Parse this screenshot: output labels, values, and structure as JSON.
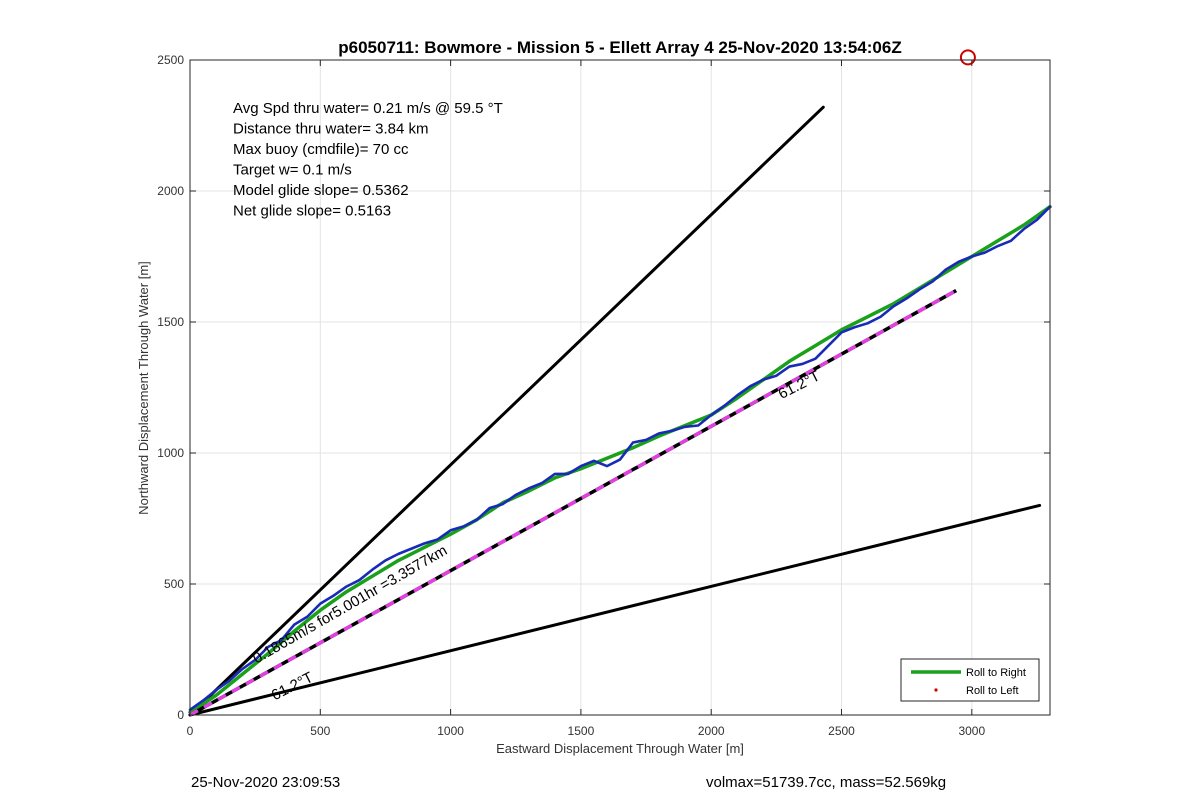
{
  "chart_data": {
    "type": "line",
    "title": "p6050711: Bowmore - Mission 5 - Ellett Array 4 25-Nov-2020 13:54:06Z",
    "xlabel": "Eastward Displacement Through Water [m]",
    "ylabel": "Northward Displacement Through Water [m]",
    "xlim": [
      0,
      3300
    ],
    "ylim": [
      0,
      2500
    ],
    "xticks": [
      0,
      500,
      1000,
      1500,
      2000,
      2500,
      3000
    ],
    "yticks": [
      0,
      500,
      1000,
      1500,
      2000,
      2500
    ],
    "grid": true,
    "legend_position": "bottom-right",
    "stats": [
      "Avg Spd thru water=  0.21 m/s @  59.5 °T",
      "Distance thru water=  3.84 km",
      "Max buoy (cmdfile)= 70 cc",
      "Target w= 0.1 m/s",
      "Model glide slope= 0.5362",
      "Net glide slope= 0.5163"
    ],
    "annotations": [
      {
        "text": "0.1865m/s for5.001hr =3.3577km",
        "x": 255,
        "y": 195,
        "angle": 30
      },
      {
        "text": "61.2°T",
        "x": 325,
        "y": 55,
        "angle": 27
      },
      {
        "text": "61.2°T",
        "x": 2270,
        "y": 1205,
        "angle": 27
      }
    ],
    "series": [
      {
        "name": "Roll to Right",
        "color": "#1aa01a",
        "style": "solid",
        "x": [
          0,
          100,
          200,
          300,
          400,
          500,
          600,
          700,
          800,
          900,
          1000,
          1100,
          1200,
          1300,
          1400,
          1500,
          1600,
          1700,
          1800,
          1900,
          2000,
          2100,
          2200,
          2300,
          2400,
          2500,
          2600,
          2700,
          2800,
          2900,
          3000,
          3100,
          3200,
          3300
        ],
        "y": [
          10,
          75,
          155,
          235,
          320,
          400,
          470,
          530,
          590,
          640,
          690,
          745,
          810,
          855,
          905,
          940,
          980,
          1020,
          1065,
          1105,
          1145,
          1210,
          1280,
          1350,
          1410,
          1470,
          1520,
          1570,
          1630,
          1690,
          1750,
          1810,
          1870,
          1940
        ]
      },
      {
        "name": "Roll to Left",
        "color": "#d00000",
        "style": "dot",
        "x": [],
        "y": []
      },
      {
        "name": "",
        "color": "#1a2ab8",
        "style": "solid",
        "x": [
          0,
          50,
          100,
          150,
          200,
          250,
          300,
          350,
          400,
          450,
          500,
          550,
          600,
          650,
          700,
          750,
          800,
          850,
          900,
          950,
          1000,
          1050,
          1100,
          1150,
          1200,
          1250,
          1300,
          1350,
          1400,
          1450,
          1500,
          1550,
          1600,
          1650,
          1700,
          1750,
          1800,
          1850,
          1900,
          1950,
          2000,
          2050,
          2100,
          2150,
          2200,
          2250,
          2300,
          2350,
          2400,
          2450,
          2500,
          2550,
          2600,
          2650,
          2700,
          2750,
          2800,
          2850,
          2900,
          2950,
          3000,
          3050,
          3100,
          3150,
          3200,
          3250,
          3300
        ],
        "y": [
          20,
          55,
          95,
          130,
          175,
          210,
          260,
          285,
          345,
          375,
          425,
          455,
          490,
          515,
          555,
          590,
          615,
          635,
          655,
          670,
          705,
          720,
          745,
          790,
          805,
          840,
          865,
          885,
          920,
          920,
          950,
          970,
          950,
          975,
          1040,
          1050,
          1075,
          1085,
          1100,
          1105,
          1145,
          1180,
          1220,
          1255,
          1280,
          1295,
          1330,
          1340,
          1360,
          1410,
          1460,
          1480,
          1495,
          1520,
          1560,
          1590,
          1625,
          1655,
          1700,
          1730,
          1750,
          1765,
          1790,
          1810,
          1855,
          1890,
          1940
        ]
      },
      {
        "name": "",
        "color": "#000000",
        "style": "solid",
        "x": [
          0,
          2430
        ],
        "y": [
          0,
          2320
        ]
      },
      {
        "name": "",
        "color": "#000000",
        "style": "solid",
        "x": [
          0,
          3260
        ],
        "y": [
          0,
          800
        ]
      },
      {
        "name": "",
        "color": "#000000",
        "style": "dashed-magenta",
        "x": [
          0,
          2940
        ],
        "y": [
          0,
          1620
        ]
      }
    ],
    "marker": {
      "x": 2985,
      "y": 2510,
      "color": "#d00000"
    }
  },
  "footer": {
    "left": "25-Nov-2020 23:09:53",
    "right": "volmax=51739.7cc, mass=52.569kg"
  }
}
